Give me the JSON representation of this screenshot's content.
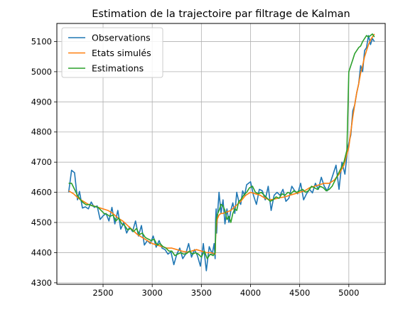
{
  "chart_data": {
    "type": "line",
    "title": "Estimation de la trajectoire par filtrage de Kalman",
    "xlabel": "",
    "ylabel": "",
    "xlim": [
      2030,
      5370
    ],
    "ylim": [
      4295,
      5160
    ],
    "xticks": [
      2000,
      2500,
      3000,
      3500,
      4000,
      4500,
      5000
    ],
    "yticks": [
      4300,
      4400,
      4500,
      4600,
      4700,
      4800,
      4900,
      5000,
      5100
    ],
    "grid": true,
    "legend": "upper left",
    "series": [
      {
        "name": "Observations",
        "color": "#1f77b4",
        "x": [
          2150,
          2180,
          2210,
          2240,
          2260,
          2290,
          2320,
          2350,
          2380,
          2410,
          2440,
          2470,
          2500,
          2530,
          2560,
          2590,
          2620,
          2650,
          2680,
          2710,
          2740,
          2770,
          2800,
          2830,
          2860,
          2890,
          2920,
          2950,
          2980,
          3010,
          3040,
          3070,
          3100,
          3130,
          3160,
          3190,
          3220,
          3250,
          3280,
          3310,
          3340,
          3370,
          3400,
          3430,
          3460,
          3490,
          3520,
          3550,
          3580,
          3610,
          3630,
          3640,
          3645,
          3650,
          3655,
          3660,
          3670,
          3680,
          3700,
          3720,
          3740,
          3760,
          3780,
          3800,
          3820,
          3840,
          3860,
          3880,
          3900,
          3920,
          3940,
          3960,
          3980,
          4000,
          4030,
          4060,
          4090,
          4120,
          4150,
          4180,
          4210,
          4240,
          4270,
          4300,
          4330,
          4360,
          4390,
          4420,
          4450,
          4480,
          4510,
          4540,
          4570,
          4600,
          4630,
          4660,
          4690,
          4720,
          4750,
          4780,
          4810,
          4840,
          4870,
          4900,
          4930,
          4960,
          4990,
          5020,
          5040,
          5060,
          5080,
          5100,
          5120,
          5140,
          5160,
          5180,
          5200,
          5220,
          5240,
          5260
        ],
        "y": [
          4600,
          4673,
          4665,
          4575,
          4603,
          4548,
          4552,
          4545,
          4568,
          4550,
          4555,
          4510,
          4522,
          4530,
          4505,
          4550,
          4495,
          4540,
          4478,
          4500,
          4465,
          4485,
          4470,
          4505,
          4455,
          4490,
          4425,
          4440,
          4430,
          4455,
          4418,
          4440,
          4415,
          4410,
          4395,
          4403,
          4360,
          4395,
          4415,
          4380,
          4395,
          4430,
          4385,
          4410,
          4390,
          4355,
          4430,
          4340,
          4420,
          4395,
          4430,
          4380,
          4510,
          4545,
          4465,
          4500,
          4555,
          4600,
          4530,
          4575,
          4495,
          4545,
          4500,
          4540,
          4565,
          4530,
          4600,
          4570,
          4560,
          4605,
          4590,
          4625,
          4630,
          4635,
          4590,
          4560,
          4610,
          4605,
          4575,
          4620,
          4540,
          4590,
          4600,
          4590,
          4610,
          4570,
          4580,
          4620,
          4605,
          4595,
          4630,
          4575,
          4595,
          4610,
          4598,
          4630,
          4610,
          4650,
          4620,
          4605,
          4630,
          4660,
          4690,
          4610,
          4700,
          4660,
          4750,
          4790,
          4870,
          4890,
          4930,
          4960,
          5020,
          5000,
          5070,
          5080,
          5120,
          5090,
          5110,
          5100
        ]
      },
      {
        "name": "Etats simulés",
        "color": "#ff7f0e",
        "x": [
          2150,
          2200,
          2250,
          2300,
          2350,
          2400,
          2450,
          2500,
          2550,
          2600,
          2650,
          2700,
          2750,
          2800,
          2850,
          2900,
          2950,
          3000,
          3050,
          3100,
          3150,
          3200,
          3250,
          3300,
          3350,
          3400,
          3450,
          3500,
          3550,
          3600,
          3640,
          3645,
          3650,
          3660,
          3680,
          3700,
          3720,
          3760,
          3800,
          3850,
          3900,
          3950,
          4000,
          4050,
          4100,
          4150,
          4200,
          4250,
          4300,
          4350,
          4400,
          4450,
          4500,
          4550,
          4600,
          4650,
          4700,
          4750,
          4800,
          4850,
          4900,
          4950,
          5000,
          5020,
          5040,
          5060,
          5080,
          5100,
          5120,
          5140,
          5160,
          5180,
          5200,
          5220,
          5240,
          5260
        ],
        "y": [
          4605,
          4595,
          4580,
          4570,
          4560,
          4555,
          4550,
          4545,
          4540,
          4530,
          4515,
          4505,
          4490,
          4475,
          4460,
          4450,
          4440,
          4430,
          4425,
          4420,
          4415,
          4415,
          4410,
          4405,
          4402,
          4405,
          4410,
          4405,
          4400,
          4400,
          4395,
          4450,
          4480,
          4510,
          4525,
          4530,
          4530,
          4535,
          4540,
          4555,
          4570,
          4590,
          4600,
          4595,
          4590,
          4580,
          4575,
          4578,
          4582,
          4585,
          4590,
          4595,
          4600,
          4605,
          4615,
          4620,
          4625,
          4630,
          4630,
          4640,
          4660,
          4690,
          4750,
          4800,
          4850,
          4890,
          4930,
          4960,
          4995,
          5020,
          5050,
          5070,
          5090,
          5105,
          5115,
          5125
        ]
      },
      {
        "name": "Estimations",
        "color": "#2ca02c",
        "x": [
          2150,
          2180,
          2210,
          2240,
          2270,
          2300,
          2330,
          2360,
          2390,
          2420,
          2450,
          2480,
          2510,
          2540,
          2570,
          2600,
          2630,
          2660,
          2690,
          2720,
          2750,
          2780,
          2810,
          2840,
          2870,
          2900,
          2930,
          2960,
          2990,
          3020,
          3050,
          3080,
          3110,
          3140,
          3170,
          3200,
          3230,
          3260,
          3290,
          3320,
          3350,
          3380,
          3410,
          3440,
          3470,
          3500,
          3530,
          3560,
          3590,
          3620,
          3640,
          3645,
          3650,
          3660,
          3680,
          3700,
          3720,
          3740,
          3760,
          3780,
          3800,
          3820,
          3840,
          3860,
          3880,
          3900,
          3930,
          3960,
          3990,
          4020,
          4050,
          4080,
          4110,
          4140,
          4170,
          4200,
          4230,
          4260,
          4290,
          4320,
          4350,
          4380,
          4410,
          4440,
          4470,
          4500,
          4530,
          4560,
          4590,
          4620,
          4650,
          4680,
          4710,
          4740,
          4770,
          4800,
          4830,
          4860,
          4890,
          4920,
          4950,
          4980,
          5000,
          5020,
          5040,
          5060,
          5080,
          5100,
          5120,
          5140,
          5160,
          5180,
          5200,
          5220,
          5240,
          5260
        ],
        "y": [
          4630,
          4630,
          4610,
          4590,
          4575,
          4565,
          4558,
          4560,
          4555,
          4553,
          4550,
          4540,
          4530,
          4527,
          4520,
          4525,
          4505,
          4515,
          4495,
          4490,
          4475,
          4480,
          4470,
          4480,
          4460,
          4465,
          4450,
          4445,
          4440,
          4445,
          4425,
          4430,
          4420,
          4415,
          4405,
          4405,
          4390,
          4395,
          4400,
          4395,
          4397,
          4405,
          4395,
          4400,
          4395,
          4385,
          4405,
          4380,
          4395,
          4390,
          4400,
          4460,
          4505,
          4525,
          4540,
          4560,
          4555,
          4540,
          4510,
          4520,
          4500,
          4530,
          4545,
          4540,
          4570,
          4575,
          4590,
          4600,
          4615,
          4620,
          4600,
          4595,
          4600,
          4590,
          4580,
          4570,
          4575,
          4585,
          4580,
          4595,
          4590,
          4600,
          4595,
          4605,
          4600,
          4605,
          4610,
          4600,
          4605,
          4620,
          4615,
          4610,
          4620,
          4615,
          4605,
          4610,
          4620,
          4640,
          4660,
          4680,
          4700,
          4740,
          5000,
          5020,
          5040,
          5060,
          5070,
          5080,
          5085,
          5100,
          5110,
          5120,
          5115,
          5120,
          5125,
          5115
        ]
      }
    ]
  }
}
